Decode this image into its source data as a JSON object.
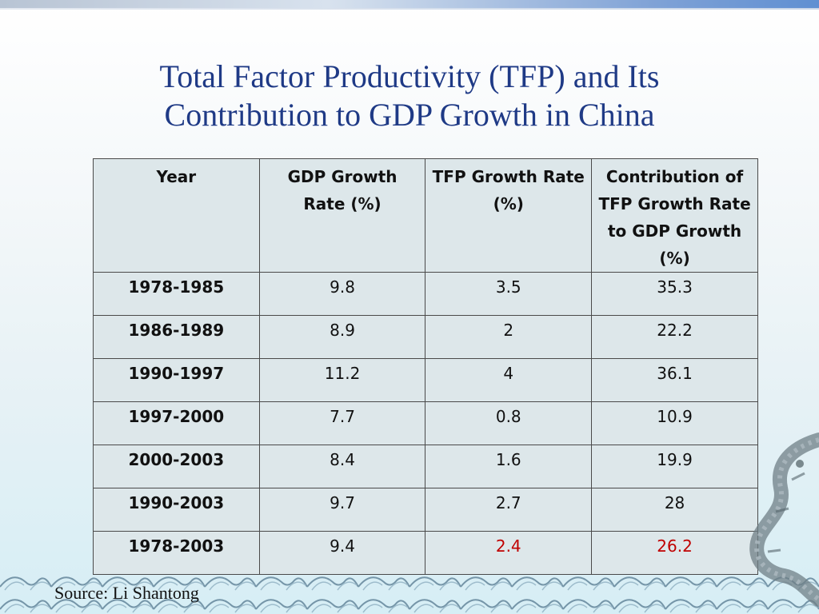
{
  "title": {
    "line1": "Total Factor Productivity (TFP) and Its",
    "line2": "Contribution to GDP Growth in China"
  },
  "table": {
    "headers": [
      "Year",
      "GDP Growth Rate (%)",
      "TFP Growth Rate (%)",
      "Contribution of TFP Growth Rate to GDP Growth (%)"
    ],
    "rows": [
      {
        "year": "1978-1985",
        "gdp": "9.8",
        "tfp": "3.5",
        "contribution": "35.3"
      },
      {
        "year": "1986-1989",
        "gdp": "8.9",
        "tfp": "2",
        "contribution": "22.2"
      },
      {
        "year": "1990-1997",
        "gdp": "11.2",
        "tfp": "4",
        "contribution": "36.1"
      },
      {
        "year": "1997-2000",
        "gdp": "7.7",
        "tfp": "0.8",
        "contribution": "10.9"
      },
      {
        "year": "2000-2003",
        "gdp": "8.4",
        "tfp": "1.6",
        "contribution": "19.9"
      },
      {
        "year": "1990-2003",
        "gdp": "9.7",
        "tfp": "2.7",
        "contribution": "28"
      },
      {
        "year": "1978-2003",
        "gdp": "9.4",
        "tfp": "2.4",
        "contribution": "26.2"
      }
    ]
  },
  "source": "Source: Li Shantong",
  "colors": {
    "title": "#1f3a86",
    "highlight": "#c00000",
    "table_bg": "#dde7ea"
  },
  "decorations": {
    "waves": "wave-pattern-icon",
    "dragon": "dragon-icon"
  }
}
